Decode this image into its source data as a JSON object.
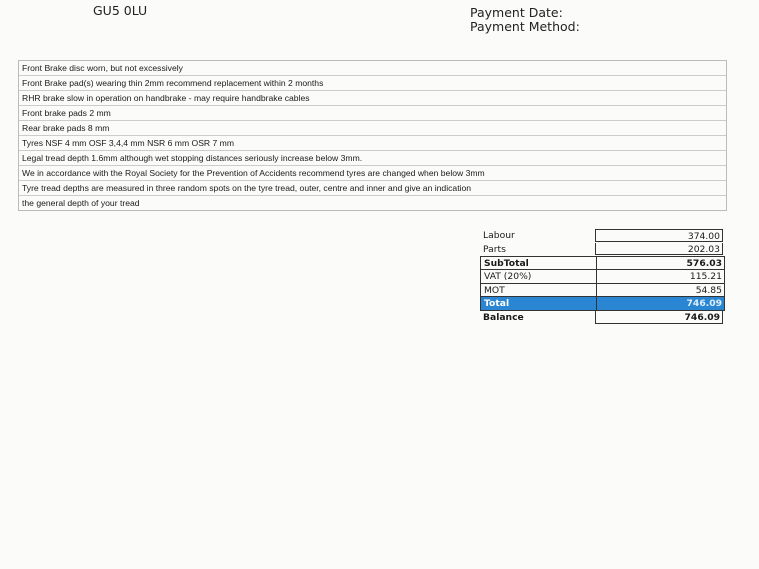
{
  "header": {
    "postcode": "GU5 0LU",
    "payment_date_label": "Payment Date:",
    "payment_method_label": "Payment Method:"
  },
  "notes": [
    "Front Brake disc worn, but not excessively",
    "Front Brake pad(s) wearing thin 2mm recommend replacement within 2 months",
    "RHR brake slow in operation on handbrake - may require handbrake cables",
    "Front brake pads 2 mm",
    "Rear brake pads 8 mm",
    "Tyres NSF 4 mm OSF 3,4,4 mm NSR 6 mm  OSR 7 mm",
    "Legal tread depth 1.6mm although wet stopping distances seriously increase below 3mm.",
    "We in accordance with the Royal Society for the Prevention of Accidents recommend tyres are changed when below 3mm",
    "Tyre tread depths are measured  in three random spots on the tyre tread, outer, centre and  inner and give an indication",
    "the general depth of your tread"
  ],
  "totals": {
    "labour": {
      "label": "Labour",
      "value": "374.00"
    },
    "parts": {
      "label": "Parts",
      "value": "202.03"
    },
    "subtotal": {
      "label": "SubTotal",
      "value": "576.03"
    },
    "vat": {
      "label": "VAT (20%)",
      "value": "115.21"
    },
    "mot": {
      "label": "MOT",
      "value": "54.85"
    },
    "total": {
      "label": "Total",
      "value": "746.09"
    },
    "balance": {
      "label": "Balance",
      "value": "746.09"
    }
  },
  "colors": {
    "total_highlight": "#2a86d2"
  }
}
